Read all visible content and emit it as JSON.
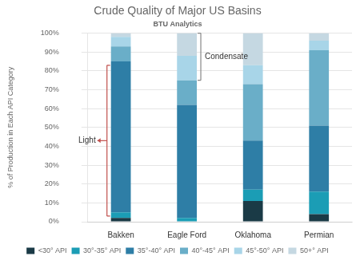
{
  "chart_data": {
    "type": "bar",
    "title": "Crude Quality of Major US Basins",
    "subtitle": "BTU Analytics",
    "stacked": true,
    "categories": [
      "Bakken",
      "Eagle Ford",
      "Oklahoma",
      "Permian"
    ],
    "series": [
      {
        "name": "<30° API",
        "color": "#1a3a46",
        "values": [
          2,
          0,
          11,
          4
        ]
      },
      {
        "name": "30°-35° API",
        "color": "#1b9db5",
        "values": [
          3,
          2,
          6,
          12
        ]
      },
      {
        "name": "35°-40° API",
        "color": "#2e7ea6",
        "values": [
          80,
          60,
          26,
          35
        ]
      },
      {
        "name": "40°-45° API",
        "color": "#6aaec8",
        "values": [
          8,
          13,
          30,
          40
        ]
      },
      {
        "name": "45°-50° API",
        "color": "#a8d5e8",
        "values": [
          5,
          13,
          10,
          5
        ]
      },
      {
        "name": "50+° API",
        "color": "#c5d8e2",
        "values": [
          2,
          12,
          17,
          4
        ]
      }
    ],
    "ylabel": "% of Production in Each API Category",
    "ylim": [
      0,
      100
    ],
    "yticks": [
      {
        "value": 0,
        "label": "0%"
      },
      {
        "value": 10,
        "label": "10%"
      },
      {
        "value": 20,
        "label": "20%"
      },
      {
        "value": 30,
        "label": "30%"
      },
      {
        "value": 40,
        "label": "40%"
      },
      {
        "value": 50,
        "label": "50%"
      },
      {
        "value": 60,
        "label": "60%"
      },
      {
        "value": 70,
        "label": "70%"
      },
      {
        "value": 80,
        "label": "80%"
      },
      {
        "value": 90,
        "label": "90%"
      },
      {
        "value": 100,
        "label": "100%"
      }
    ],
    "grid": true,
    "legend": "bottom",
    "annotations": [
      {
        "text": "Light",
        "category": "Bakken",
        "y": [
          3,
          83
        ],
        "color": "#c0504d"
      },
      {
        "text": "Condensate",
        "category": "Eagle Ford",
        "y": [
          75,
          100
        ],
        "color": "#888888"
      }
    ]
  }
}
